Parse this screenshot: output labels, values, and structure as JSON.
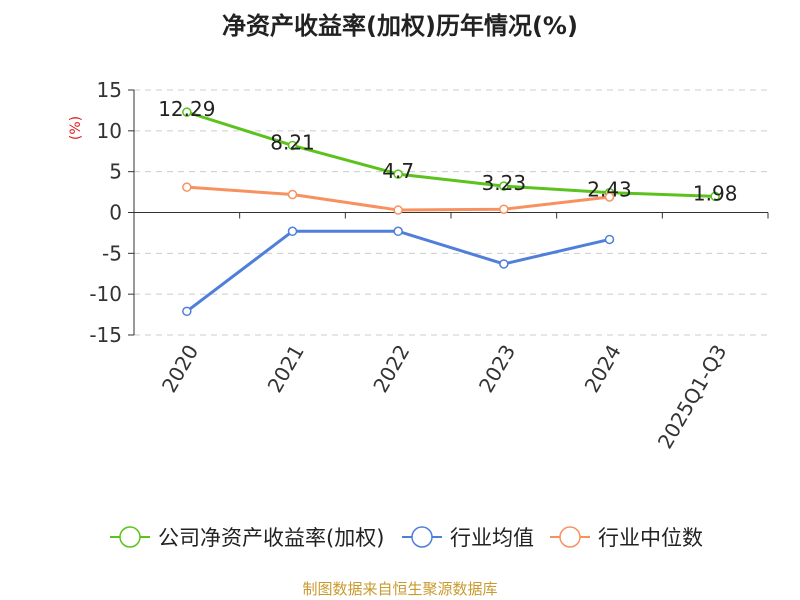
{
  "title": "净资产收益率(加权)历年情况(%)",
  "source": "制图数据来自恒生聚源数据库",
  "colors": {
    "company": "#5cc21e",
    "industry_avg": "#4f7fd8",
    "industry_median": "#f79260",
    "grid": "#cccccc",
    "axis": "#333333",
    "unit": "#e02020"
  },
  "chart_data": {
    "type": "line",
    "title": "净资产收益率(加权)历年情况(%)",
    "ylabel": "(%)",
    "xlabel": "",
    "ylim": [
      -15,
      15
    ],
    "yticks": [
      15,
      10,
      5,
      0,
      -5,
      -10,
      -15
    ],
    "ytick_labels": [
      "15",
      "10",
      "5",
      "0",
      "-5",
      "-10",
      "-15"
    ],
    "categories": [
      "2020",
      "2021",
      "2022",
      "2023",
      "2024",
      "2025Q1-Q3"
    ],
    "grid": true,
    "legend_position": "bottom",
    "series": [
      {
        "name": "公司净资产收益率(加权)",
        "color": "#5cc21e",
        "values": [
          12.29,
          8.21,
          4.7,
          3.23,
          2.43,
          1.98
        ],
        "labels": [
          "12.29",
          "8.21",
          "4.7",
          "3.23",
          "2.43",
          "1.98"
        ]
      },
      {
        "name": "行业均值",
        "color": "#4f7fd8",
        "values": [
          -12.1,
          -2.3,
          -2.3,
          -6.3,
          -3.3,
          null
        ]
      },
      {
        "name": "行业中位数",
        "color": "#f79260",
        "values": [
          3.1,
          2.2,
          0.3,
          0.4,
          1.9,
          null
        ]
      }
    ]
  }
}
